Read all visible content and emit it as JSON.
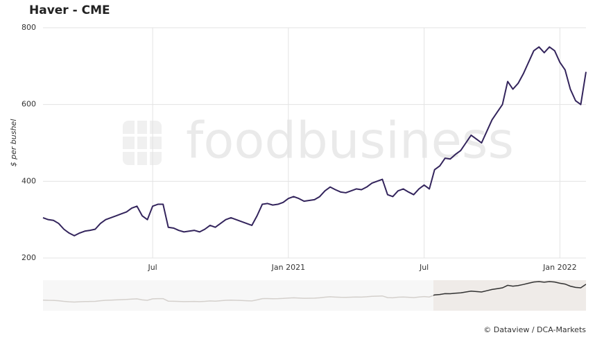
{
  "chart_data": {
    "type": "line",
    "title": "Haver - CME",
    "y_label": "$ per bushel",
    "watermark": "foodbusiness",
    "credit": "© Dataview / DCA-Markets",
    "categories": [
      null,
      null,
      null,
      null,
      null,
      null,
      null,
      null,
      null,
      null,
      null,
      null,
      null,
      null,
      null,
      null,
      null,
      null,
      null,
      null,
      null,
      "Jul",
      null,
      null,
      null,
      null,
      null,
      null,
      null,
      null,
      null,
      null,
      null,
      null,
      null,
      null,
      null,
      null,
      null,
      null,
      null,
      null,
      null,
      null,
      null,
      null,
      null,
      "Jan 2021",
      null,
      null,
      null,
      null,
      null,
      null,
      null,
      null,
      null,
      null,
      null,
      null,
      null,
      null,
      null,
      null,
      null,
      null,
      null,
      null,
      null,
      null,
      null,
      null,
      null,
      "Jul",
      null,
      null,
      null,
      null,
      null,
      null,
      null,
      null,
      null,
      null,
      null,
      null,
      null,
      null,
      null,
      null,
      null,
      null,
      null,
      null,
      null,
      null,
      null,
      null,
      null,
      "Jan 2022",
      null,
      null,
      null,
      null,
      null
    ],
    "series": [
      {
        "name": "Haver - CME",
        "color": "#33245c",
        "values": [
          305,
          300,
          298,
          290,
          275,
          265,
          258,
          265,
          270,
          272,
          275,
          290,
          300,
          305,
          310,
          315,
          320,
          330,
          335,
          310,
          300,
          335,
          340,
          340,
          280,
          278,
          272,
          268,
          270,
          272,
          268,
          275,
          285,
          280,
          290,
          300,
          305,
          300,
          295,
          290,
          285,
          310,
          340,
          342,
          338,
          340,
          345,
          355,
          360,
          355,
          348,
          350,
          352,
          360,
          375,
          385,
          378,
          372,
          370,
          375,
          380,
          378,
          385,
          395,
          400,
          405,
          365,
          360,
          375,
          380,
          372,
          365,
          380,
          390,
          380,
          430,
          440,
          460,
          458,
          470,
          480,
          500,
          520,
          510,
          500,
          530,
          560,
          580,
          600,
          660,
          640,
          655,
          680,
          710,
          740,
          750,
          735,
          750,
          740,
          710,
          690,
          640,
          610,
          600,
          685
        ]
      }
    ],
    "ylim": [
      200,
      800
    ],
    "yticks": [
      200,
      400,
      600,
      800
    ],
    "grid": true
  }
}
